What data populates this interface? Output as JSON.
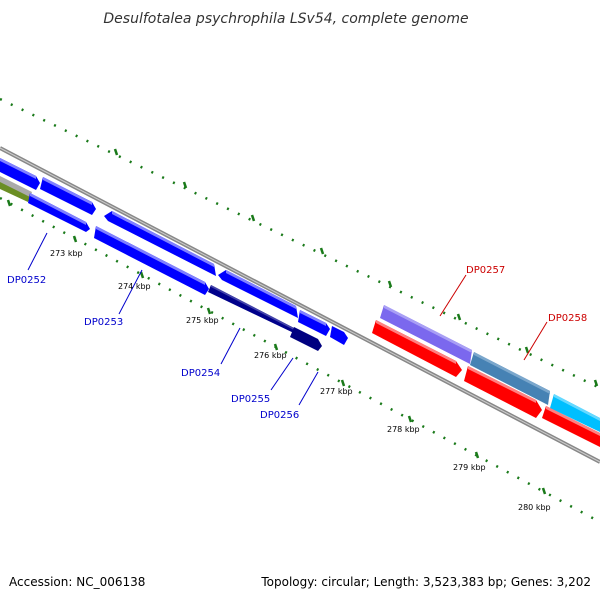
{
  "title": "Desulfotalea psychrophila LSv54, complete genome",
  "footer": {
    "accession": "Accession: NC_006138",
    "summary": "Topology: circular; Length: 3,523,383 bp; Genes: 3,202"
  },
  "colors": {
    "forward_strand": "#0000ff",
    "reverse_strand": "#ff0000",
    "label_blue": "#0000cc",
    "label_red": "#cc0000",
    "backbone": "#888888",
    "tick_green": "#1a7a1a"
  },
  "ticks": [
    {
      "label": "273 kbp"
    },
    {
      "label": "274 kbp"
    },
    {
      "label": "275 kbp"
    },
    {
      "label": "276 kbp"
    },
    {
      "label": "277 kbp"
    },
    {
      "label": "278 kbp"
    },
    {
      "label": "279 kbp"
    },
    {
      "label": "280 kbp"
    }
  ],
  "genes": [
    {
      "id": "DP0252",
      "strand": "blue"
    },
    {
      "id": "DP0253",
      "strand": "blue"
    },
    {
      "id": "DP0254",
      "strand": "blue"
    },
    {
      "id": "DP0255",
      "strand": "blue"
    },
    {
      "id": "DP0256",
      "strand": "blue"
    },
    {
      "id": "DP0257",
      "strand": "red"
    },
    {
      "id": "DP0258",
      "strand": "red"
    }
  ]
}
